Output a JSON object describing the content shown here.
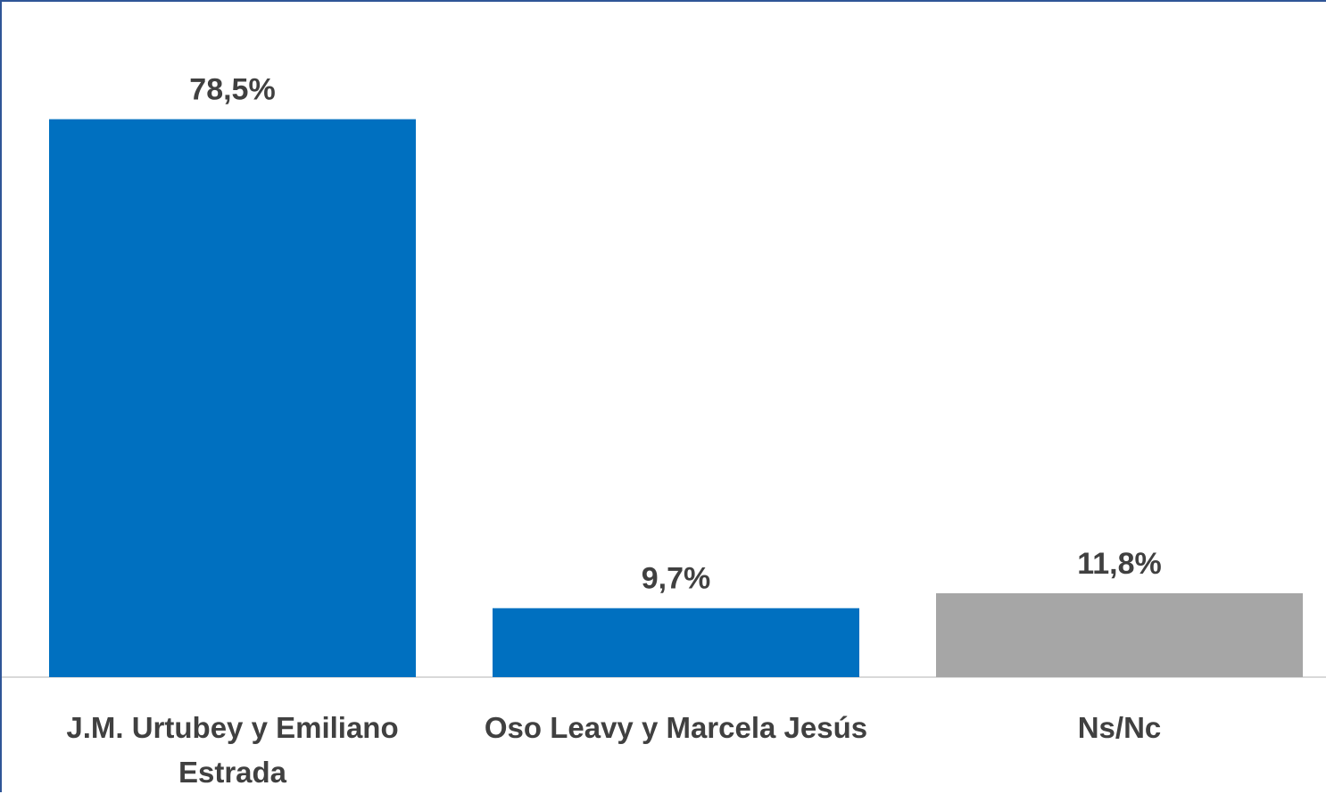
{
  "chart_data": {
    "type": "bar",
    "categories": [
      [
        "J.M. Urtubey y Emiliano",
        "Estrada"
      ],
      [
        "Oso Leavy y Marcela Jesús"
      ],
      [
        "Ns/Nc"
      ]
    ],
    "values": [
      78.5,
      9.7,
      11.8
    ],
    "data_labels": [
      "78,5%",
      "9,7%",
      "11,8%"
    ],
    "colors": [
      "#0070c0",
      "#0070c0",
      "#a6a6a6"
    ],
    "title": "",
    "xlabel": "",
    "ylabel": "",
    "ylim": [
      0,
      90
    ],
    "grid": false,
    "legend": "none"
  }
}
